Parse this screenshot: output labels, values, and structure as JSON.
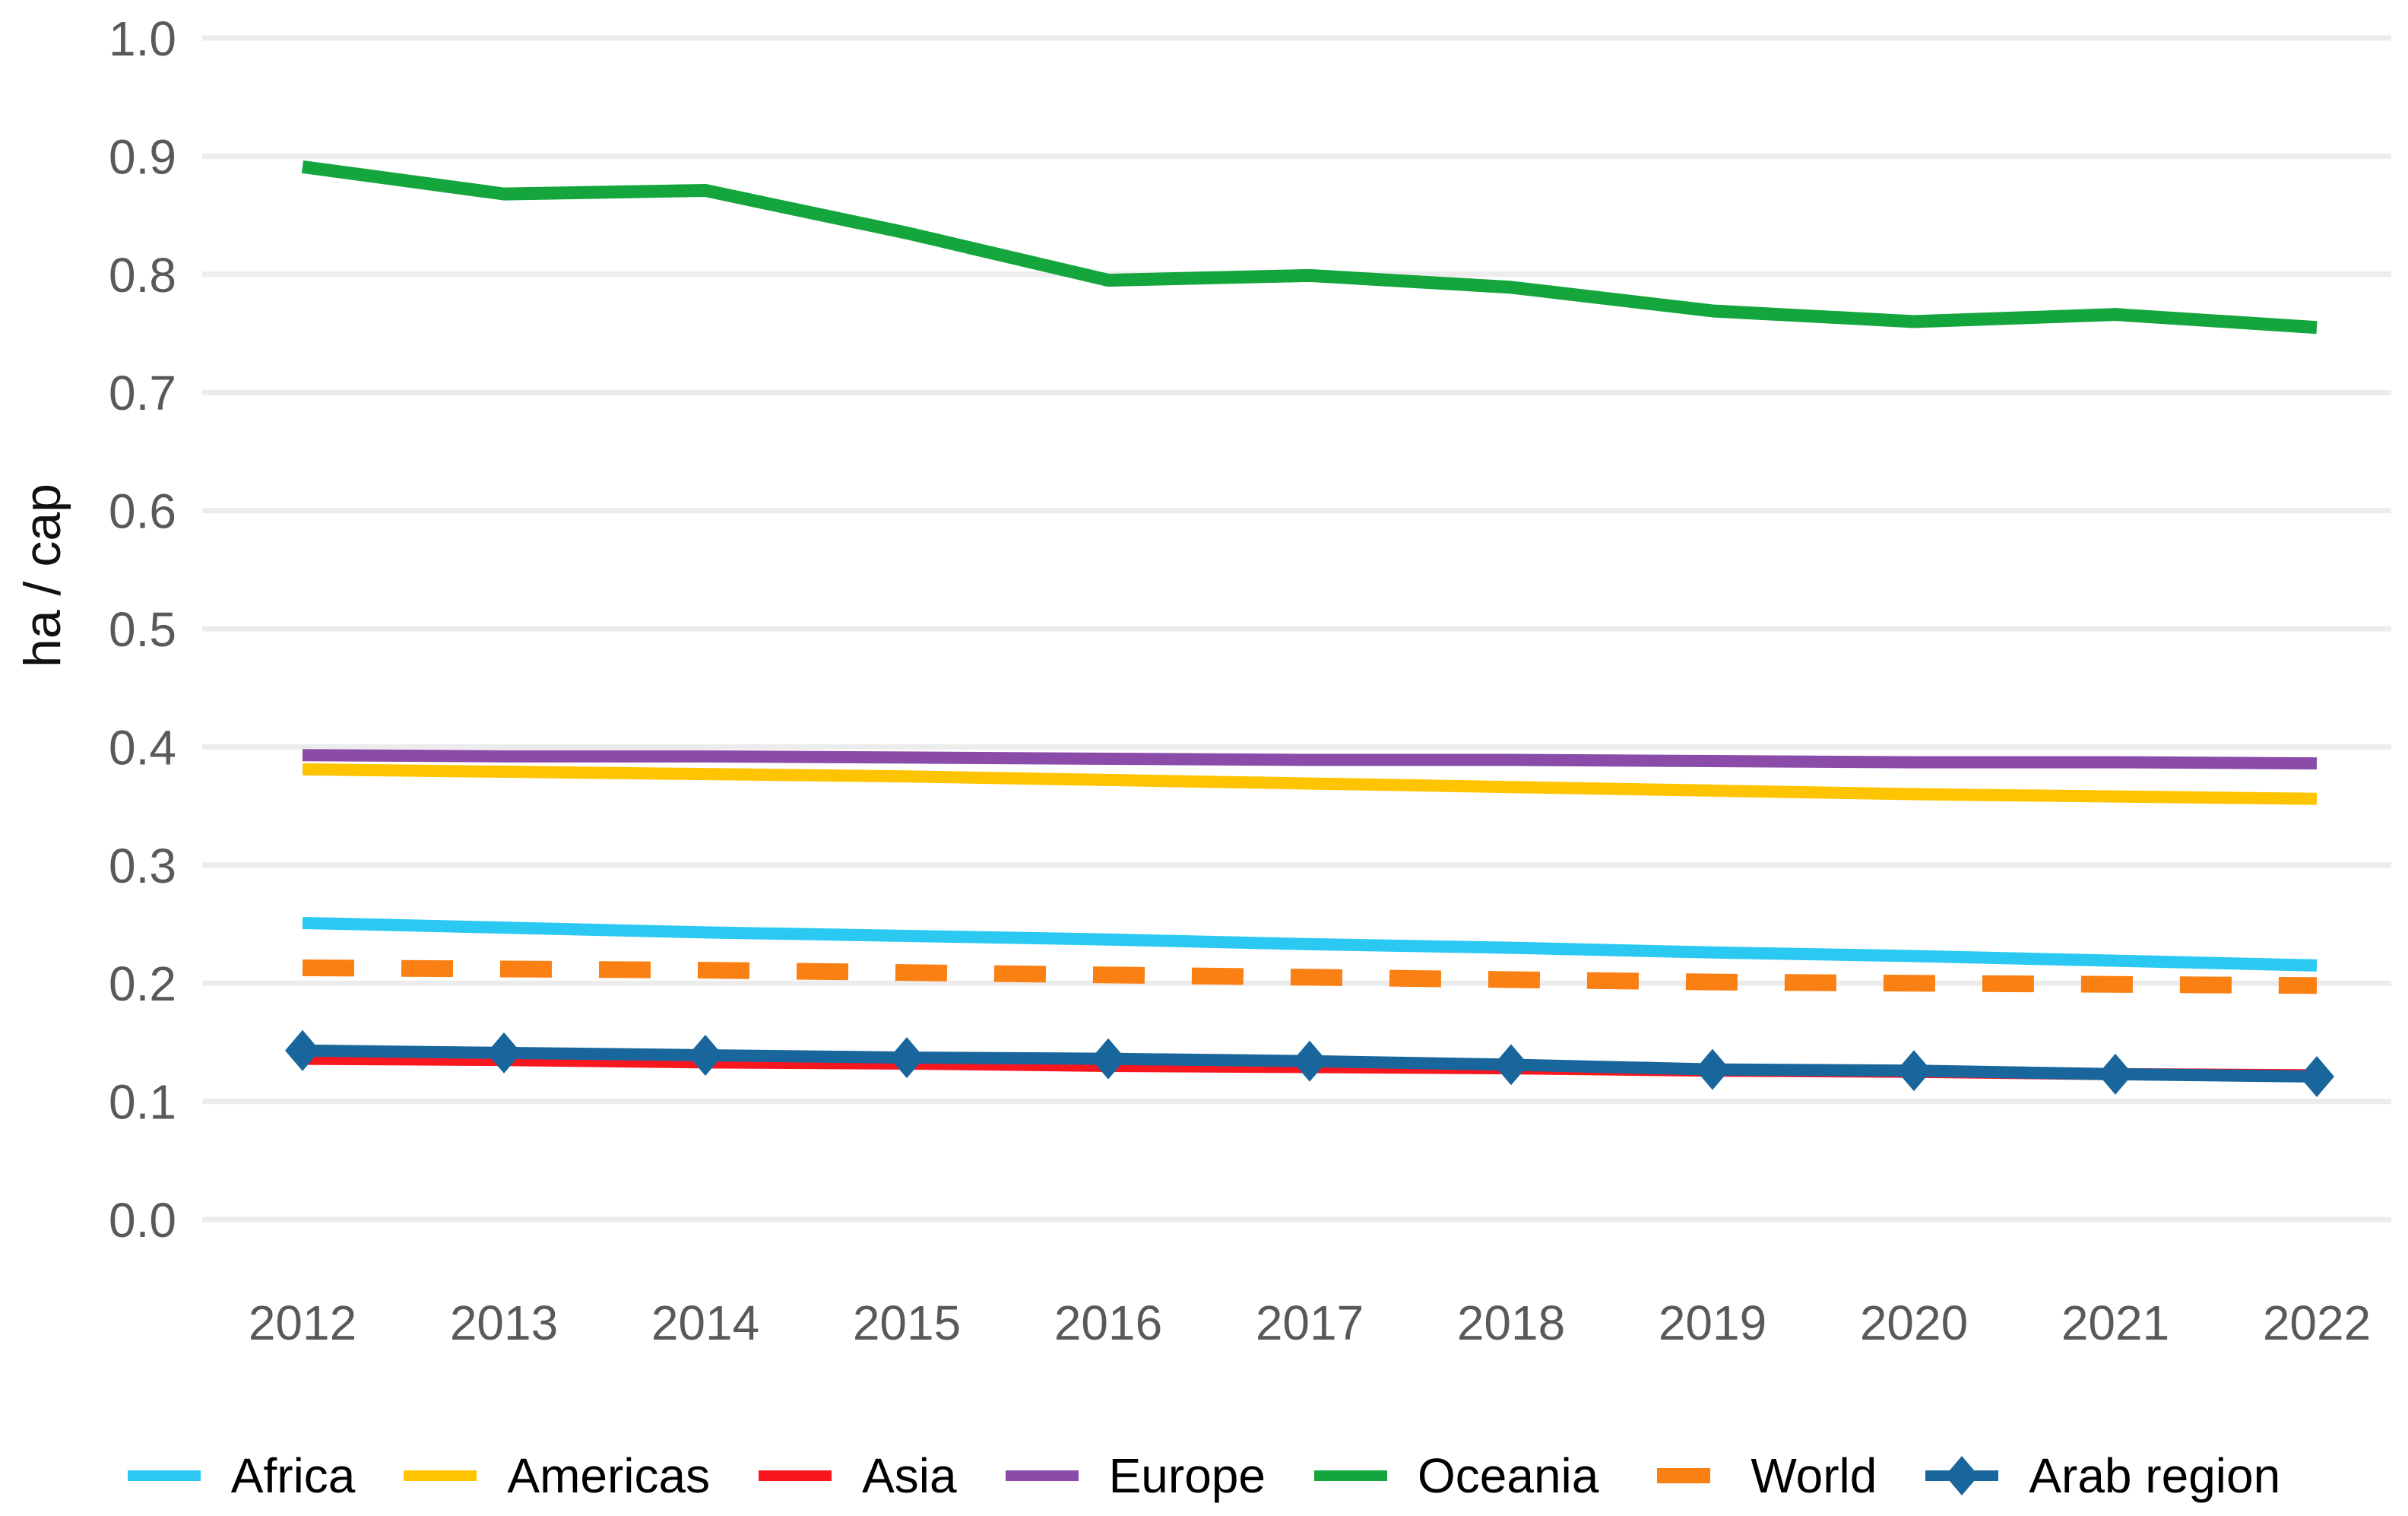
{
  "figure": {
    "ylabel": "ha / cap",
    "background_color": "#ffffff",
    "grid_color": "#ececec",
    "tick_label_color": "#595959",
    "axis_title_color": "#111111",
    "legend_text_color": "#000000"
  },
  "chart_data": {
    "type": "line",
    "title": "",
    "xlabel": "",
    "ylabel": "ha / cap",
    "x": [
      2012,
      2013,
      2014,
      2015,
      2016,
      2017,
      2018,
      2019,
      2020,
      2021,
      2022
    ],
    "x_tick_labels": [
      "2012",
      "2013",
      "2014",
      "2015",
      "2016",
      "2017",
      "2018",
      "2019",
      "2020",
      "2021",
      "2022"
    ],
    "ylim": [
      0.0,
      1.0
    ],
    "y_tick_labels": [
      "0.0",
      "0.1",
      "0.2",
      "0.3",
      "0.4",
      "0.5",
      "0.6",
      "0.7",
      "0.8",
      "0.9",
      "1.0"
    ],
    "grid": "horizontal",
    "legend_position": "bottom",
    "series": [
      {
        "name": "Africa",
        "color": "#2bc9f2",
        "line_style": "solid",
        "marker": "none",
        "values": [
          0.251,
          0.247,
          0.243,
          0.24,
          0.237,
          0.233,
          0.23,
          0.226,
          0.223,
          0.219,
          0.215
        ]
      },
      {
        "name": "Americas",
        "color": "#ffc400",
        "line_style": "solid",
        "marker": "none",
        "values": [
          0.381,
          0.379,
          0.377,
          0.375,
          0.372,
          0.369,
          0.366,
          0.363,
          0.36,
          0.358,
          0.356
        ]
      },
      {
        "name": "Asia",
        "color": "#f8161f",
        "line_style": "solid",
        "marker": "none",
        "values": [
          0.136,
          0.135,
          0.133,
          0.132,
          0.13,
          0.129,
          0.128,
          0.126,
          0.125,
          0.123,
          0.122
        ]
      },
      {
        "name": "Europe",
        "color": "#8b4ba8",
        "line_style": "solid",
        "marker": "none",
        "values": [
          0.393,
          0.392,
          0.392,
          0.391,
          0.39,
          0.389,
          0.389,
          0.388,
          0.387,
          0.387,
          0.386
        ]
      },
      {
        "name": "Oceania",
        "color": "#14a53c",
        "line_style": "solid",
        "marker": "none",
        "values": [
          0.891,
          0.868,
          0.871,
          0.835,
          0.795,
          0.799,
          0.789,
          0.769,
          0.76,
          0.766,
          0.755
        ]
      },
      {
        "name": "World",
        "color": "#fa8014",
        "line_style": "dashed",
        "marker": "none",
        "values": [
          0.213,
          0.212,
          0.211,
          0.209,
          0.207,
          0.205,
          0.203,
          0.201,
          0.2,
          0.199,
          0.198
        ]
      },
      {
        "name": "Arab region",
        "color": "#19669c",
        "line_style": "solid",
        "marker": "diamond",
        "values": [
          0.143,
          0.141,
          0.139,
          0.137,
          0.136,
          0.134,
          0.131,
          0.127,
          0.126,
          0.123,
          0.121
        ]
      }
    ]
  }
}
